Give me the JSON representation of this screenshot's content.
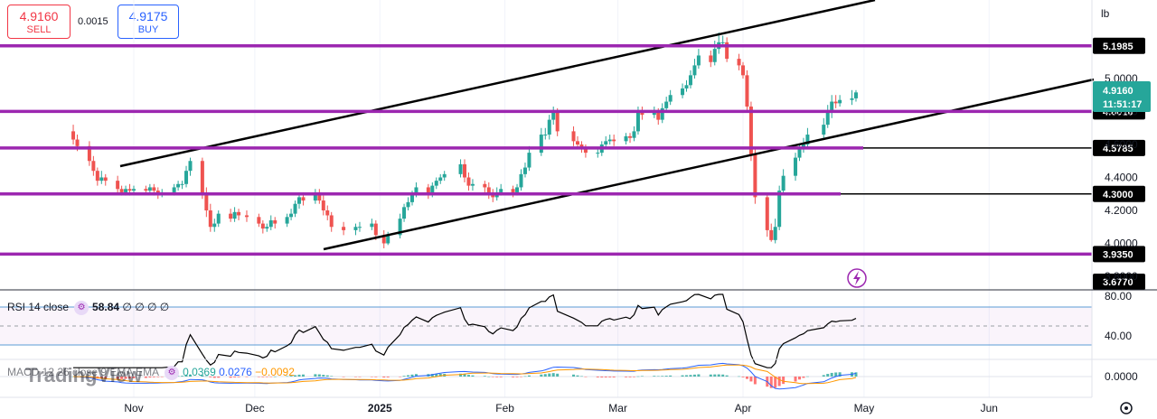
{
  "header": {
    "sell_price": "4.9160",
    "sell_label": "SELL",
    "spread": "0.0015",
    "buy_price": "4.9175",
    "buy_label": "BUY"
  },
  "axis": {
    "unit": "lb",
    "price_ticks": [
      "5.0000",
      "4.8000",
      "4.6000",
      "4.4000",
      "4.2000",
      "4.0000",
      "3.8000"
    ],
    "time_ticks": [
      "Nov",
      "Dec",
      "2025",
      "Feb",
      "Mar",
      "Apr",
      "May",
      "Jun"
    ],
    "rsi_ticks": [
      "80.00",
      "40.00"
    ],
    "macd_ticks": [
      "0.0000"
    ]
  },
  "levels": [
    {
      "label": "5.1985",
      "value": 5.1985
    },
    {
      "label": "4.8010",
      "value": 4.801
    },
    {
      "label": "4.5785",
      "value": 4.5785
    },
    {
      "label": "4.3000",
      "value": 4.3
    },
    {
      "label": "3.9350",
      "value": 3.935
    },
    {
      "label": "3.6770",
      "value": 3.677
    }
  ],
  "current": {
    "price": "4.9160",
    "countdown": "11:51:17"
  },
  "rsi": {
    "label": "RSI 14 close",
    "value": "58.84",
    "extra": "∅ ∅ ∅ ∅"
  },
  "macd": {
    "label": "MACD 12 26 close 9 EMA EMA",
    "v1": "0.0369",
    "v2": "0.0276",
    "v3": "−0.0092"
  },
  "watermark": "TradingView",
  "colors": {
    "up": "#26a69a",
    "down": "#ef5350",
    "level": "#9c27b0",
    "trend": "#000000"
  },
  "chart_data": {
    "type": "candlestick",
    "ylim": [
      3.677,
      5.3
    ],
    "x": [
      "2024-10-17",
      "2024-10-18",
      "2024-10-21",
      "2024-10-22",
      "2024-10-23",
      "2024-10-24",
      "2024-10-25",
      "2024-10-28",
      "2024-10-29",
      "2024-10-30",
      "2024-10-31",
      "2024-11-01",
      "2024-11-04",
      "2024-11-05",
      "2024-11-06",
      "2024-11-07",
      "2024-11-08",
      "2024-11-11",
      "2024-11-12",
      "2024-11-13",
      "2024-11-14",
      "2024-11-15",
      "2024-11-18",
      "2024-11-19",
      "2024-11-20",
      "2024-11-21",
      "2024-11-22",
      "2024-11-25",
      "2024-11-26",
      "2024-11-27",
      "2024-11-29",
      "2024-12-02",
      "2024-12-03",
      "2024-12-04",
      "2024-12-05",
      "2024-12-06",
      "2024-12-09",
      "2024-12-10",
      "2024-12-11",
      "2024-12-12",
      "2024-12-13",
      "2024-12-16",
      "2024-12-17",
      "2024-12-18",
      "2024-12-19",
      "2024-12-20",
      "2024-12-23",
      "2024-12-26",
      "2024-12-27",
      "2024-12-30",
      "2024-12-31",
      "2025-01-02",
      "2025-01-03",
      "2025-01-06",
      "2025-01-07",
      "2025-01-08",
      "2025-01-09",
      "2025-01-10",
      "2025-01-13",
      "2025-01-14",
      "2025-01-15",
      "2025-01-16",
      "2025-01-17",
      "2025-01-21",
      "2025-01-22",
      "2025-01-23",
      "2025-01-24",
      "2025-01-27",
      "2025-01-28",
      "2025-01-29",
      "2025-01-30",
      "2025-01-31",
      "2025-02-03",
      "2025-02-04",
      "2025-02-05",
      "2025-02-06",
      "2025-02-07",
      "2025-02-10",
      "2025-02-11",
      "2025-02-12",
      "2025-02-13",
      "2025-02-14",
      "2025-02-18",
      "2025-02-19",
      "2025-02-20",
      "2025-02-21",
      "2025-02-24",
      "2025-02-25",
      "2025-02-26",
      "2025-02-27",
      "2025-02-28",
      "2025-03-03",
      "2025-03-04",
      "2025-03-05",
      "2025-03-06",
      "2025-03-07",
      "2025-03-10",
      "2025-03-11",
      "2025-03-12",
      "2025-03-13",
      "2025-03-14",
      "2025-03-17",
      "2025-03-18",
      "2025-03-19",
      "2025-03-20",
      "2025-03-21",
      "2025-03-24",
      "2025-03-25",
      "2025-03-26",
      "2025-03-27",
      "2025-03-28",
      "2025-03-31",
      "2025-04-01",
      "2025-04-02",
      "2025-04-03",
      "2025-04-04",
      "2025-04-07",
      "2025-04-08",
      "2025-04-09",
      "2025-04-10",
      "2025-04-11",
      "2025-04-14",
      "2025-04-15",
      "2025-04-16",
      "2025-04-17",
      "2025-04-21",
      "2025-04-22",
      "2025-04-23",
      "2025-04-24",
      "2025-04-25",
      "2025-04-28",
      "2025-04-29"
    ],
    "open": [
      4.68,
      4.63,
      4.59,
      4.5,
      4.44,
      4.38,
      4.4,
      4.38,
      4.33,
      4.31,
      4.33,
      4.32,
      4.33,
      4.32,
      4.34,
      4.32,
      4.3,
      4.31,
      4.34,
      4.36,
      4.36,
      4.44,
      4.5,
      4.3,
      4.2,
      4.1,
      4.12,
      4.18,
      4.15,
      4.19,
      4.17,
      4.16,
      4.12,
      4.09,
      4.1,
      4.14,
      4.12,
      4.16,
      4.18,
      4.24,
      4.28,
      4.26,
      4.31,
      4.26,
      4.2,
      4.17,
      4.1,
      4.08,
      4.1,
      4.1,
      4.12,
      4.05,
      4.0,
      4.05,
      4.15,
      4.22,
      4.25,
      4.3,
      4.34,
      4.3,
      4.35,
      4.38,
      4.4,
      4.42,
      4.48,
      4.4,
      4.35,
      4.36,
      4.34,
      4.3,
      4.28,
      4.31,
      4.33,
      4.31,
      4.34,
      4.42,
      4.46,
      4.55,
      4.66,
      4.66,
      4.75,
      4.8,
      4.68,
      4.62,
      4.6,
      4.58,
      4.55,
      4.55,
      4.6,
      4.62,
      4.63,
      4.62,
      4.65,
      4.64,
      4.68,
      4.8,
      4.78,
      4.8,
      4.75,
      4.82,
      4.86,
      4.9,
      4.94,
      4.96,
      5.02,
      5.08,
      5.14,
      5.1,
      5.18,
      5.22,
      5.22,
      5.12,
      5.08,
      5.02,
      4.83,
      4.54,
      4.28,
      4.08,
      4.02,
      4.1,
      4.32,
      4.41,
      4.52,
      4.57,
      4.6,
      4.66,
      4.72,
      4.8,
      4.86,
      4.85,
      4.87,
      4.88
    ],
    "close": [
      4.63,
      4.59,
      4.5,
      4.44,
      4.38,
      4.4,
      4.38,
      4.33,
      4.31,
      4.33,
      4.32,
      4.33,
      4.32,
      4.34,
      4.32,
      4.3,
      4.31,
      4.34,
      4.36,
      4.36,
      4.44,
      4.5,
      4.3,
      4.2,
      4.1,
      4.12,
      4.18,
      4.15,
      4.19,
      4.17,
      4.16,
      4.12,
      4.09,
      4.1,
      4.14,
      4.12,
      4.16,
      4.18,
      4.24,
      4.28,
      4.26,
      4.31,
      4.26,
      4.2,
      4.17,
      4.1,
      4.08,
      4.1,
      4.1,
      4.12,
      4.05,
      4.0,
      4.05,
      4.15,
      4.22,
      4.25,
      4.3,
      4.34,
      4.3,
      4.35,
      4.38,
      4.4,
      4.42,
      4.48,
      4.4,
      4.35,
      4.36,
      4.34,
      4.3,
      4.28,
      4.31,
      4.33,
      4.31,
      4.34,
      4.42,
      4.46,
      4.55,
      4.66,
      4.66,
      4.75,
      4.8,
      4.68,
      4.62,
      4.6,
      4.58,
      4.55,
      4.55,
      4.6,
      4.62,
      4.63,
      4.62,
      4.65,
      4.64,
      4.68,
      4.8,
      4.78,
      4.8,
      4.75,
      4.82,
      4.86,
      4.9,
      4.94,
      4.96,
      5.02,
      5.08,
      5.14,
      5.1,
      5.18,
      5.22,
      5.22,
      5.12,
      5.08,
      5.02,
      4.83,
      4.54,
      4.28,
      4.08,
      4.02,
      4.1,
      4.32,
      4.41,
      4.52,
      4.57,
      4.6,
      4.66,
      4.72,
      4.8,
      4.86,
      4.85,
      4.87,
      4.88,
      4.916
    ],
    "high": [
      4.72,
      4.66,
      4.62,
      4.53,
      4.46,
      4.44,
      4.42,
      4.41,
      4.35,
      4.35,
      4.36,
      4.35,
      4.35,
      4.36,
      4.36,
      4.34,
      4.33,
      4.36,
      4.38,
      4.38,
      4.47,
      4.52,
      4.52,
      4.34,
      4.24,
      4.15,
      4.2,
      4.21,
      4.22,
      4.21,
      4.2,
      4.18,
      4.14,
      4.12,
      4.17,
      4.16,
      4.18,
      4.21,
      4.26,
      4.31,
      4.31,
      4.33,
      4.33,
      4.29,
      4.23,
      4.19,
      4.13,
      4.12,
      4.13,
      4.15,
      4.14,
      4.08,
      4.07,
      4.18,
      4.24,
      4.28,
      4.32,
      4.37,
      4.36,
      4.37,
      4.4,
      4.42,
      4.44,
      4.51,
      4.51,
      4.43,
      4.39,
      4.38,
      4.37,
      4.33,
      4.34,
      4.36,
      4.35,
      4.36,
      4.45,
      4.49,
      4.59,
      4.7,
      4.7,
      4.78,
      4.83,
      4.82,
      4.71,
      4.65,
      4.62,
      4.6,
      4.58,
      4.62,
      4.65,
      4.66,
      4.66,
      4.67,
      4.67,
      4.71,
      4.83,
      4.83,
      4.83,
      4.82,
      4.85,
      4.89,
      4.93,
      4.97,
      4.99,
      5.05,
      5.12,
      5.18,
      5.17,
      5.23,
      5.28,
      5.26,
      5.25,
      5.15,
      5.1,
      5.05,
      4.86,
      4.58,
      4.3,
      4.12,
      4.15,
      4.35,
      4.45,
      4.55,
      4.6,
      4.64,
      4.7,
      4.76,
      4.84,
      4.9,
      4.9,
      4.9,
      4.93,
      4.93
    ],
    "low": [
      4.6,
      4.56,
      4.47,
      4.41,
      4.35,
      4.36,
      4.35,
      4.3,
      4.29,
      4.29,
      4.29,
      4.3,
      4.3,
      4.3,
      4.29,
      4.27,
      4.28,
      4.29,
      4.32,
      4.33,
      4.34,
      4.41,
      4.27,
      4.16,
      4.07,
      4.07,
      4.1,
      4.13,
      4.13,
      4.14,
      4.13,
      4.1,
      4.06,
      4.07,
      4.08,
      4.09,
      4.1,
      4.14,
      4.16,
      4.21,
      4.23,
      4.24,
      4.24,
      4.17,
      4.14,
      4.07,
      4.05,
      4.05,
      4.07,
      4.08,
      4.02,
      3.97,
      3.99,
      4.03,
      4.13,
      4.2,
      4.23,
      4.28,
      4.27,
      4.28,
      4.33,
      4.36,
      4.38,
      4.4,
      4.37,
      4.32,
      4.32,
      4.31,
      4.27,
      4.25,
      4.26,
      4.29,
      4.28,
      4.29,
      4.32,
      4.4,
      4.44,
      4.53,
      4.63,
      4.63,
      4.72,
      4.65,
      4.59,
      4.57,
      4.55,
      4.52,
      4.52,
      4.53,
      4.58,
      4.6,
      4.59,
      4.6,
      4.61,
      4.62,
      4.66,
      4.75,
      4.76,
      4.72,
      4.73,
      4.8,
      4.84,
      4.88,
      4.92,
      4.94,
      5.0,
      5.06,
      5.07,
      5.08,
      5.15,
      5.19,
      5.1,
      5.05,
      5.0,
      4.8,
      4.5,
      4.24,
      4.04,
      4.01,
      4.0,
      4.08,
      4.3,
      4.38,
      4.5,
      4.55,
      4.58,
      4.64,
      4.7,
      4.76,
      4.82,
      4.83,
      4.84,
      4.86
    ]
  }
}
